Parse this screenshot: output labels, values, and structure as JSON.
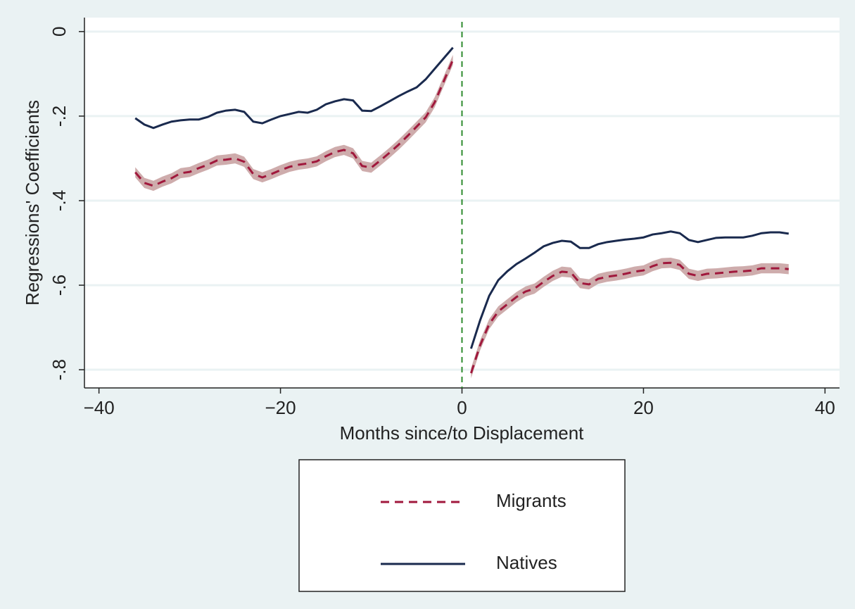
{
  "chart_data": {
    "type": "line",
    "x_label": "Months since/to Displacement",
    "y_label": "Regressions' Coefficients",
    "x": [
      -36,
      -35,
      -34,
      -33,
      -32,
      -31,
      -30,
      -29,
      -28,
      -27,
      -26,
      -25,
      -24,
      -23,
      -22,
      -21,
      -20,
      -19,
      -18,
      -17,
      -16,
      -15,
      -14,
      -13,
      -12,
      -11,
      -10,
      -9,
      -8,
      -7,
      -6,
      -5,
      -4,
      -3,
      -2,
      -1,
      0,
      1,
      2,
      3,
      4,
      5,
      6,
      7,
      8,
      9,
      10,
      11,
      12,
      13,
      14,
      15,
      16,
      17,
      18,
      19,
      20,
      21,
      22,
      23,
      24,
      25,
      26,
      27,
      28,
      29,
      30,
      31,
      32,
      33,
      34,
      35,
      36
    ],
    "series": [
      {
        "name": "Migrants",
        "color": "#a0183c",
        "dash": true,
        "band_color": "#c9a3a3",
        "ci": 0.012,
        "values": [
          -0.333,
          -0.358,
          -0.365,
          -0.355,
          -0.347,
          -0.335,
          -0.332,
          -0.323,
          -0.315,
          -0.305,
          -0.303,
          -0.3,
          -0.308,
          -0.337,
          -0.345,
          -0.337,
          -0.328,
          -0.32,
          -0.315,
          -0.312,
          -0.307,
          -0.295,
          -0.285,
          -0.28,
          -0.288,
          -0.318,
          -0.322,
          -0.305,
          -0.287,
          -0.268,
          -0.247,
          -0.225,
          -0.203,
          -0.167,
          -0.117,
          -0.067,
          null,
          -0.808,
          -0.742,
          -0.692,
          -0.662,
          -0.645,
          -0.628,
          -0.615,
          -0.608,
          -0.592,
          -0.578,
          -0.568,
          -0.57,
          -0.595,
          -0.598,
          -0.585,
          -0.58,
          -0.577,
          -0.573,
          -0.568,
          -0.565,
          -0.555,
          -0.548,
          -0.547,
          -0.552,
          -0.573,
          -0.578,
          -0.573,
          -0.572,
          -0.57,
          -0.568,
          -0.567,
          -0.565,
          -0.56,
          -0.56,
          -0.56,
          -0.562
        ]
      },
      {
        "name": "Natives",
        "color": "#1a2a4e",
        "dash": false,
        "values": [
          -0.205,
          -0.22,
          -0.228,
          -0.22,
          -0.213,
          -0.21,
          -0.208,
          -0.208,
          -0.202,
          -0.192,
          -0.187,
          -0.185,
          -0.19,
          -0.213,
          -0.217,
          -0.208,
          -0.2,
          -0.195,
          -0.19,
          -0.192,
          -0.185,
          -0.172,
          -0.165,
          -0.16,
          -0.163,
          -0.187,
          -0.188,
          -0.177,
          -0.165,
          -0.153,
          -0.142,
          -0.132,
          -0.113,
          -0.088,
          -0.063,
          -0.038,
          null,
          -0.75,
          -0.683,
          -0.625,
          -0.588,
          -0.567,
          -0.55,
          -0.537,
          -0.523,
          -0.508,
          -0.5,
          -0.495,
          -0.497,
          -0.512,
          -0.512,
          -0.503,
          -0.498,
          -0.495,
          -0.492,
          -0.49,
          -0.487,
          -0.48,
          -0.477,
          -0.473,
          -0.477,
          -0.493,
          -0.498,
          -0.493,
          -0.488,
          -0.487,
          -0.487,
          -0.487,
          -0.483,
          -0.477,
          -0.475,
          -0.475,
          -0.478
        ]
      }
    ],
    "vline": 0,
    "vline_color": "#2e8b2e",
    "xlim": [
      -41.6,
      41.6
    ],
    "ylim": [
      -0.843,
      0.033
    ],
    "xticks": [
      {
        "value": -40,
        "label": "−40"
      },
      {
        "value": -20,
        "label": "−20"
      },
      0,
      20,
      40
    ],
    "yticks": [
      0,
      {
        "value": -0.2,
        "label": "-.2"
      },
      {
        "value": -0.4,
        "label": "-.4"
      },
      {
        "value": -0.6,
        "label": "-.6"
      },
      {
        "value": -0.8,
        "label": "-.8"
      }
    ],
    "grid": true
  }
}
